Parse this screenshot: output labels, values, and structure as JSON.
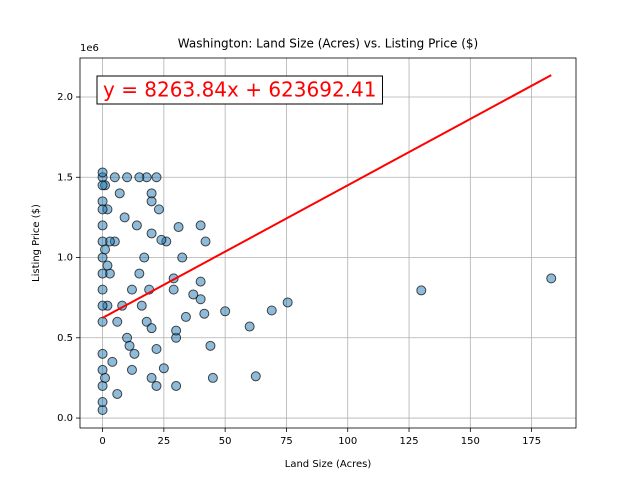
{
  "chart_data": {
    "type": "scatter",
    "title": "Washington: Land Size (Acres) vs. Listing Price ($)",
    "x_label": "Land Size (Acres)",
    "y_label": "Listing Price ($)",
    "y_offset_label": "1e6",
    "annotation": "y = 8263.84x + 623692.41",
    "annotation_color": "#ff0000",
    "grid": true,
    "xlim": [
      -9.2,
      193.1
    ],
    "ylim": [
      -62000,
      2243000
    ],
    "xticks": [
      0,
      25,
      50,
      75,
      100,
      125,
      150,
      175
    ],
    "yticks": [
      {
        "value": 0,
        "label": "0.0"
      },
      {
        "value": 500000,
        "label": "0.5"
      },
      {
        "value": 1000000,
        "label": "1.0"
      },
      {
        "value": 1500000,
        "label": "1.5"
      },
      {
        "value": 2000000,
        "label": "2.0"
      }
    ],
    "series": [
      {
        "color": "#1f77b4",
        "x": [
          183,
          130,
          75.5,
          69,
          62.5,
          60,
          50,
          45,
          44,
          41.5,
          40,
          40,
          42,
          40,
          37,
          34,
          32.5,
          31,
          30,
          30,
          30,
          29,
          29,
          26,
          24,
          23,
          22,
          22,
          20,
          20,
          20,
          20,
          25,
          18,
          22,
          15,
          10,
          5,
          0,
          0,
          0,
          0,
          0,
          0,
          0,
          0,
          0,
          0,
          2,
          5,
          3,
          8,
          10,
          12,
          6,
          15,
          18,
          14,
          17,
          12,
          4,
          7,
          1,
          2,
          1,
          9,
          11,
          16,
          19,
          20,
          13,
          3,
          6,
          2,
          0,
          1,
          0,
          0,
          0,
          0,
          0,
          0
        ],
        "values": [
          870000,
          795000,
          720000,
          670000,
          260000,
          570000,
          665000,
          250000,
          450000,
          650000,
          740000,
          1200000,
          1100000,
          850000,
          770000,
          630000,
          1000000,
          1190000,
          200000,
          500000,
          545000,
          800000,
          870000,
          1100000,
          1110000,
          1300000,
          200000,
          430000,
          1400000,
          1350000,
          1150000,
          250000,
          310000,
          1500000,
          1500000,
          1500000,
          1500000,
          1500000,
          1500000,
          1530000,
          1200000,
          1000000,
          800000,
          600000,
          400000,
          200000,
          50000,
          100000,
          1300000,
          1100000,
          900000,
          700000,
          500000,
          300000,
          150000,
          900000,
          600000,
          1200000,
          1000000,
          800000,
          350000,
          1400000,
          1450000,
          700000,
          250000,
          1250000,
          450000,
          700000,
          800000,
          560000,
          400000,
          1100000,
          600000,
          950000,
          1350000,
          1050000,
          300000,
          700000,
          900000,
          1100000,
          1300000,
          1450000
        ]
      }
    ],
    "fit": {
      "color": "#ff0000",
      "x": [
        0,
        183
      ],
      "y": [
        623692.41,
        2135974.93
      ]
    }
  }
}
